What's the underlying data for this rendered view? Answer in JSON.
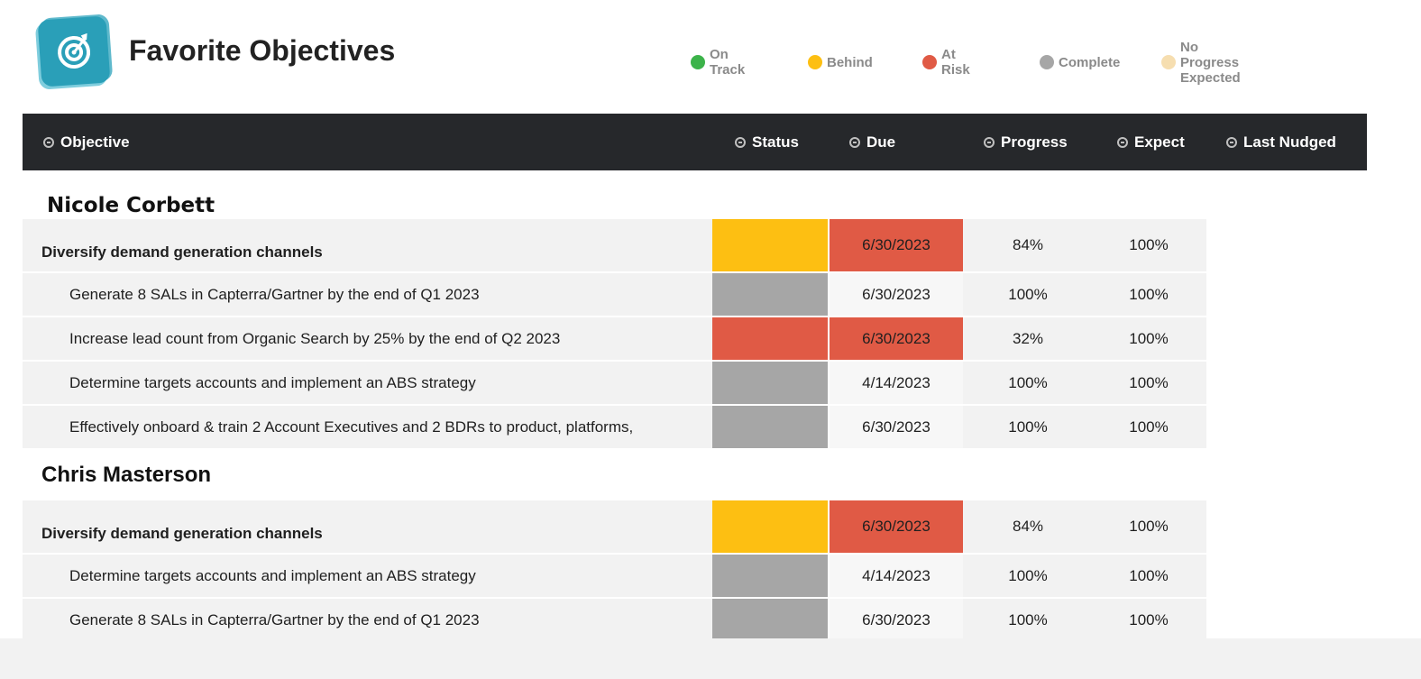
{
  "header": {
    "title": "Favorite Objectives",
    "logo_icon": "target-icon"
  },
  "legend": [
    {
      "label": "On Track",
      "color": "#3cb34a"
    },
    {
      "label": "Behind",
      "color": "#fdbf12"
    },
    {
      "label": "At Risk",
      "color": "#e05a45"
    },
    {
      "label": "Complete",
      "color": "#a6a6a6"
    },
    {
      "label": "No Progress Expected",
      "color": "#f6deb0"
    }
  ],
  "columns": {
    "objective": "Objective",
    "status": "Status",
    "due": "Due",
    "progress": "Progress",
    "expect": "Expect",
    "last_nudged": "Last Nudged"
  },
  "colors": {
    "behind": "#fdbf12",
    "at_risk": "#e05a45",
    "complete": "#a6a6a6",
    "row_bg": "#f2f2f2",
    "header_bg": "#26282b"
  },
  "groups": [
    {
      "name": "Nicole Corbett",
      "objectives": [
        {
          "title": "Diversify demand generation channels",
          "parent": true,
          "status": "behind",
          "due": "6/30/2023",
          "due_overdue": true,
          "progress": "84%",
          "expect": "100%",
          "last_nudged": ""
        },
        {
          "title": "Generate 8 SALs in Capterra/Gartner by the end of Q1 2023",
          "parent": false,
          "status": "complete",
          "due": "6/30/2023",
          "due_overdue": false,
          "progress": "100%",
          "expect": "100%",
          "last_nudged": ""
        },
        {
          "title": "Increase lead count from Organic Search by 25% by the end of Q2 2023",
          "parent": false,
          "status": "at_risk",
          "due": "6/30/2023",
          "due_overdue": true,
          "progress": "32%",
          "expect": "100%",
          "last_nudged": ""
        },
        {
          "title": "Determine targets accounts and implement an ABS strategy",
          "parent": false,
          "status": "complete",
          "due": "4/14/2023",
          "due_overdue": false,
          "progress": "100%",
          "expect": "100%",
          "last_nudged": ""
        },
        {
          "title": "Effectively onboard & train 2 Account Executives and 2 BDRs to product, platforms,",
          "parent": false,
          "status": "complete",
          "due": "6/30/2023",
          "due_overdue": false,
          "progress": "100%",
          "expect": "100%",
          "last_nudged": ""
        }
      ]
    },
    {
      "name": "Chris Masterson",
      "objectives": [
        {
          "title": "Diversify demand generation channels",
          "parent": true,
          "status": "behind",
          "due": "6/30/2023",
          "due_overdue": true,
          "progress": "84%",
          "expect": "100%",
          "last_nudged": ""
        },
        {
          "title": "Determine targets accounts and implement an ABS strategy",
          "parent": false,
          "status": "complete",
          "due": "4/14/2023",
          "due_overdue": false,
          "progress": "100%",
          "expect": "100%",
          "last_nudged": ""
        },
        {
          "title": "Generate 8 SALs in Capterra/Gartner by the end of Q1 2023",
          "parent": false,
          "status": "complete",
          "due": "6/30/2023",
          "due_overdue": false,
          "progress": "100%",
          "expect": "100%",
          "last_nudged": ""
        }
      ]
    }
  ]
}
